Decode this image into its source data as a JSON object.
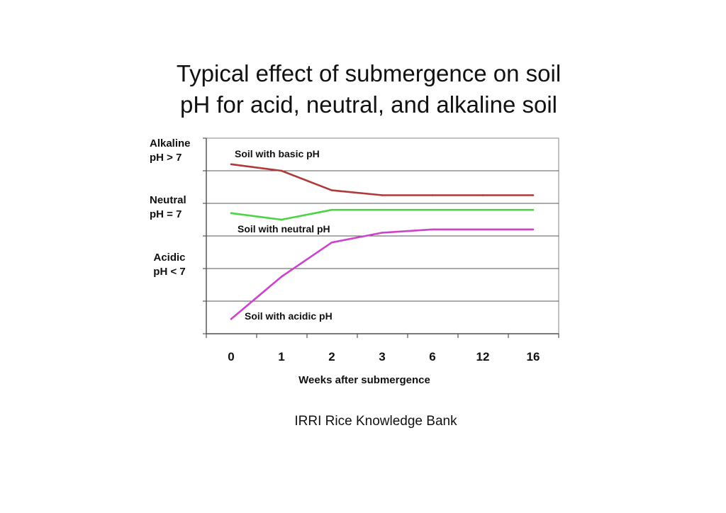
{
  "title": {
    "line1": "Typical effect of submergence on soil",
    "line2": "pH for acid, neutral, and alkaline soil"
  },
  "credit": "IRRI Rice Knowledge Bank",
  "chart_data": {
    "type": "line",
    "xlabel": "Weeks after submergence",
    "categories": [
      "0",
      "1",
      "2",
      "3",
      "6",
      "12",
      "16"
    ],
    "y_category_labels": [
      {
        "name": "alkaline",
        "line1": "Alkaline",
        "line2": "pH > 7",
        "level": 5.5
      },
      {
        "name": "neutral",
        "line1": "Neutral",
        "line2": "pH = 7",
        "level": 3.5
      },
      {
        "name": "acidic",
        "line1": "Acidic",
        "line2": "pH < 7",
        "level": 1.5
      }
    ],
    "ylim": [
      0,
      6
    ],
    "gridlines": [
      1,
      2,
      3,
      4,
      5
    ],
    "series": [
      {
        "key": "basic",
        "name": "Soil with basic pH",
        "color": "#b03a3a",
        "values": [
          5.2,
          5.0,
          4.4,
          4.25,
          4.25,
          4.25,
          4.25
        ]
      },
      {
        "key": "neutral",
        "name": "Soil with neutral pH",
        "color": "#4cd444",
        "values": [
          3.7,
          3.5,
          3.8,
          3.8,
          3.8,
          3.8,
          3.8
        ]
      },
      {
        "key": "acidic",
        "name": "Soil with acidic pH",
        "color": "#cc44cc",
        "values": [
          0.45,
          1.75,
          2.8,
          3.1,
          3.2,
          3.2,
          3.2
        ]
      }
    ]
  }
}
